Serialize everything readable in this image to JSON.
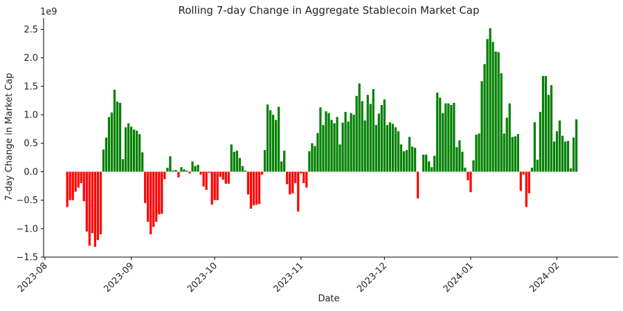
{
  "chart_data": {
    "type": "bar",
    "title": "Rolling 7-day Change in Aggregate Stablecoin Market Cap",
    "xlabel": "Date",
    "ylabel": "7-day Change in Market Cap",
    "y_offset_label": "1e9",
    "x_axis": "date",
    "x_start": "2023-08-09",
    "x_end": "2024-02-07",
    "x_ticks": [
      "2023-08-01",
      "2023-09-01",
      "2023-10-01",
      "2023-11-01",
      "2023-12-01",
      "2024-01-01",
      "2024-02-01"
    ],
    "x_tick_labels": [
      "2023-08",
      "2023-09",
      "2023-10",
      "2023-11",
      "2023-12",
      "2024-01",
      "2024-02"
    ],
    "ylim": [
      -1.5,
      2.7
    ],
    "y_ticks": [
      -1.5,
      -1.0,
      -0.5,
      0.0,
      0.5,
      1.0,
      1.5,
      2.0,
      2.5
    ],
    "y_tick_labels": [
      "−1.5",
      "−1.0",
      "−0.5",
      "0.0",
      "0.5",
      "1.0",
      "1.5",
      "2.0",
      "2.5"
    ],
    "grid": false,
    "colors": {
      "positive": "#008000",
      "negative": "#ff0000"
    },
    "values": [
      -0.62,
      -0.5,
      -0.5,
      -0.35,
      -0.28,
      -0.2,
      -0.52,
      -1.05,
      -1.3,
      -1.08,
      -1.32,
      -1.2,
      -1.1,
      0.39,
      0.6,
      0.96,
      1.04,
      1.44,
      1.23,
      1.21,
      0.22,
      0.78,
      0.85,
      0.79,
      0.74,
      0.72,
      0.66,
      0.34,
      -0.55,
      -0.88,
      -1.1,
      -0.97,
      -0.88,
      -0.75,
      -0.74,
      -0.13,
      0.07,
      0.27,
      0.02,
      0.03,
      -0.1,
      0.08,
      0.04,
      0.02,
      -0.03,
      0.18,
      0.1,
      0.12,
      -0.05,
      -0.26,
      -0.32,
      -0.02,
      -0.58,
      -0.5,
      -0.5,
      -0.09,
      -0.14,
      -0.21,
      -0.21,
      0.48,
      0.35,
      0.37,
      0.24,
      0.1,
      0.02,
      -0.4,
      -0.65,
      -0.59,
      -0.58,
      -0.57,
      -0.05,
      0.38,
      1.18,
      1.08,
      1.0,
      0.91,
      1.14,
      0.18,
      0.37,
      -0.22,
      -0.4,
      -0.38,
      -0.2,
      -0.7,
      -0.03,
      -0.2,
      -0.28,
      0.36,
      0.5,
      0.45,
      0.68,
      1.13,
      0.82,
      1.06,
      1.03,
      0.91,
      0.85,
      0.96,
      0.48,
      0.86,
      1.05,
      0.88,
      1.03,
      1.0,
      1.33,
      1.55,
      1.24,
      0.9,
      1.35,
      1.19,
      1.45,
      0.82,
      1.02,
      1.17,
      1.27,
      0.82,
      0.87,
      0.84,
      0.78,
      0.71,
      0.48,
      0.36,
      0.38,
      0.61,
      0.44,
      0.42,
      -0.47,
      0.0,
      0.3,
      0.3,
      0.18,
      0.08,
      0.28,
      1.39,
      1.3,
      1.03,
      1.2,
      1.2,
      1.17,
      1.21,
      0.43,
      0.55,
      0.35,
      0.07,
      -0.15,
      -0.36,
      0.2,
      0.65,
      0.67,
      1.59,
      1.89,
      2.33,
      2.52,
      2.28,
      2.11,
      2.1,
      1.73,
      0.67,
      0.95,
      1.2,
      0.61,
      0.62,
      0.66,
      -0.34,
      -0.05,
      -0.62,
      -0.38,
      0.07,
      0.87,
      0.21,
      1.05,
      1.68,
      1.68,
      1.35,
      1.52,
      0.53,
      0.71,
      0.9,
      0.63,
      0.53,
      0.54,
      0.06,
      0.6,
      0.92
    ]
  }
}
